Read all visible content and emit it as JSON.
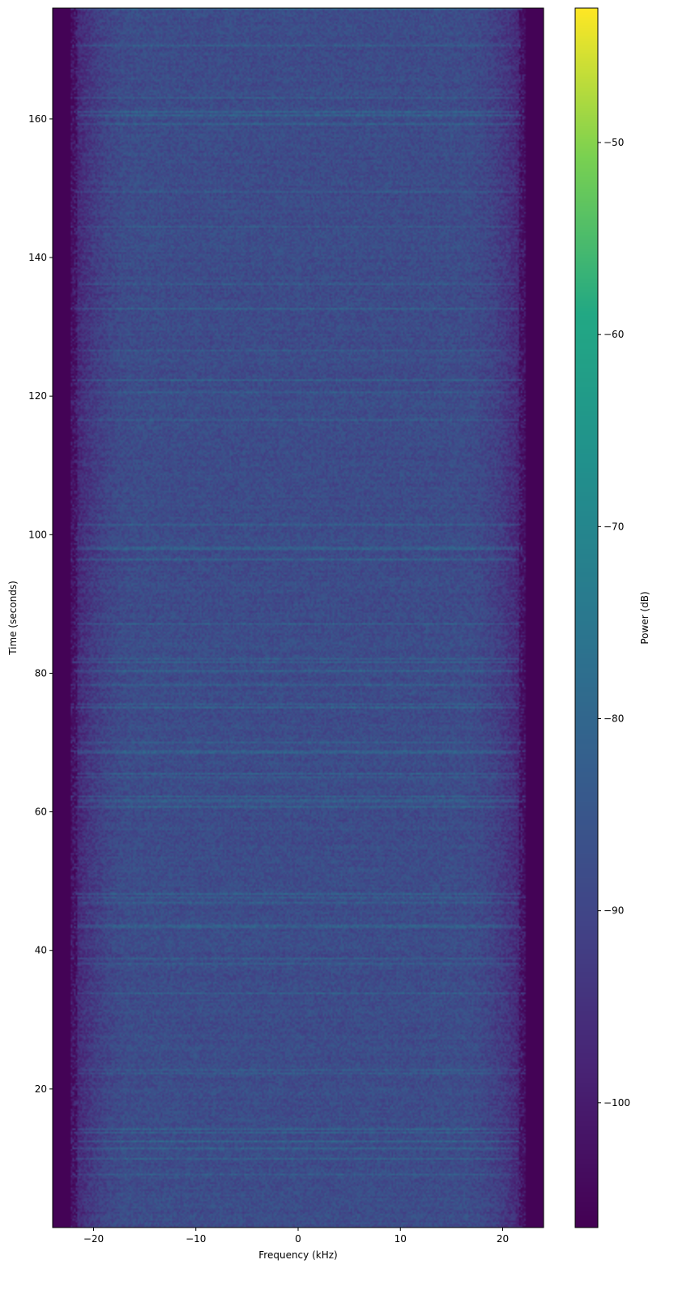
{
  "chart_data": {
    "type": "heatmap",
    "subtype": "spectrogram",
    "title": "",
    "xlabel": "Frequency (kHz)",
    "ylabel": "Time (seconds)",
    "xlim": [
      -24,
      24
    ],
    "ylim": [
      0,
      176
    ],
    "xticks": [
      -20,
      -10,
      0,
      10,
      20
    ],
    "xtick_labels": [
      "−20",
      "−10",
      "0",
      "10",
      "20"
    ],
    "yticks": [
      20,
      40,
      60,
      80,
      100,
      120,
      140,
      160
    ],
    "ytick_labels": [
      "20",
      "40",
      "60",
      "80",
      "100",
      "120",
      "140",
      "160"
    ],
    "grid": false,
    "colormap": "viridis",
    "colorbar": {
      "label": "Power (dB)",
      "range": [
        -106.5,
        -43
      ],
      "ticks": [
        -50,
        -60,
        -70,
        -80,
        -90,
        -100
      ],
      "tick_labels": [
        "−50",
        "−60",
        "−70",
        "−80",
        "−90",
        "−100"
      ]
    },
    "description_values": {
      "passband_kHz": [
        -21,
        21
      ],
      "stopband_power_dB": -106,
      "passband_typical_power_dB": -88
    }
  }
}
